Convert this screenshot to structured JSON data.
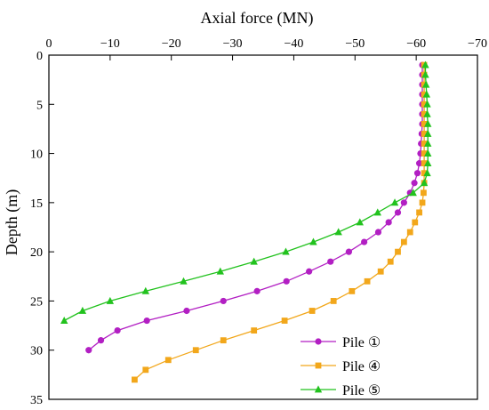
{
  "chart_data": {
    "type": "line",
    "title": "",
    "xlabel": "Axial force (MN)",
    "ylabel": "Depth (m)",
    "xlim": [
      0,
      -70
    ],
    "ylim": [
      0,
      35
    ],
    "x_axis_position": "top",
    "y_inverted": true,
    "grid": false,
    "legend_position": "bottom-right",
    "xticks": [
      0,
      -10,
      -20,
      -30,
      -40,
      -50,
      -60,
      -70
    ],
    "yticks": [
      0,
      5,
      10,
      15,
      20,
      25,
      30,
      35
    ],
    "series": [
      {
        "name": "Pile ①",
        "color": "#b21fc3",
        "marker": "circle",
        "points": [
          [
            -61.0,
            1
          ],
          [
            -61.0,
            2
          ],
          [
            -61.0,
            3
          ],
          [
            -61.0,
            4
          ],
          [
            -61.0,
            5
          ],
          [
            -61.0,
            6
          ],
          [
            -61.0,
            7
          ],
          [
            -60.9,
            8
          ],
          [
            -60.8,
            9
          ],
          [
            -60.7,
            10
          ],
          [
            -60.5,
            11
          ],
          [
            -60.2,
            12
          ],
          [
            -59.7,
            13
          ],
          [
            -59.0,
            14
          ],
          [
            -58.0,
            15
          ],
          [
            -57.0,
            16
          ],
          [
            -55.5,
            17
          ],
          [
            -53.8,
            18
          ],
          [
            -51.5,
            19
          ],
          [
            -49.0,
            20
          ],
          [
            -46.0,
            21
          ],
          [
            -42.5,
            22
          ],
          [
            -38.8,
            23
          ],
          [
            -34.0,
            24
          ],
          [
            -28.5,
            25
          ],
          [
            -22.5,
            26
          ],
          [
            -16.0,
            27
          ],
          [
            -11.2,
            28
          ],
          [
            -8.5,
            29
          ],
          [
            -6.5,
            30
          ]
        ]
      },
      {
        "name": "Pile ④",
        "color": "#f2a71b",
        "marker": "square",
        "points": [
          [
            -61.3,
            1
          ],
          [
            -61.3,
            2
          ],
          [
            -61.3,
            3
          ],
          [
            -61.3,
            4
          ],
          [
            -61.3,
            5
          ],
          [
            -61.3,
            6
          ],
          [
            -61.3,
            7
          ],
          [
            -61.3,
            8
          ],
          [
            -61.3,
            9
          ],
          [
            -61.3,
            10
          ],
          [
            -61.3,
            11
          ],
          [
            -61.3,
            12
          ],
          [
            -61.3,
            13
          ],
          [
            -61.2,
            14
          ],
          [
            -61.0,
            15
          ],
          [
            -60.5,
            16
          ],
          [
            -59.8,
            17
          ],
          [
            -59.0,
            18
          ],
          [
            -58.0,
            19
          ],
          [
            -57.0,
            20
          ],
          [
            -55.8,
            21
          ],
          [
            -54.2,
            22
          ],
          [
            -52.0,
            23
          ],
          [
            -49.5,
            24
          ],
          [
            -46.5,
            25
          ],
          [
            -43.0,
            26
          ],
          [
            -38.5,
            27
          ],
          [
            -33.5,
            28
          ],
          [
            -28.5,
            29
          ],
          [
            -24.0,
            30
          ],
          [
            -19.5,
            31
          ],
          [
            -15.8,
            32
          ],
          [
            -14.0,
            33
          ]
        ]
      },
      {
        "name": "Pile ⑤",
        "color": "#22c21e",
        "marker": "triangle",
        "points": [
          [
            -61.5,
            1
          ],
          [
            -61.5,
            2
          ],
          [
            -61.6,
            3
          ],
          [
            -61.7,
            4
          ],
          [
            -61.8,
            5
          ],
          [
            -61.8,
            6
          ],
          [
            -61.9,
            7
          ],
          [
            -61.9,
            8
          ],
          [
            -61.9,
            9
          ],
          [
            -61.9,
            10
          ],
          [
            -61.9,
            11
          ],
          [
            -61.8,
            12
          ],
          [
            -61.3,
            13
          ],
          [
            -59.5,
            14
          ],
          [
            -56.5,
            15
          ],
          [
            -53.7,
            16
          ],
          [
            -50.8,
            17
          ],
          [
            -47.3,
            18
          ],
          [
            -43.2,
            19
          ],
          [
            -38.7,
            20
          ],
          [
            -33.5,
            21
          ],
          [
            -28.0,
            22
          ],
          [
            -22.0,
            23
          ],
          [
            -15.8,
            24
          ],
          [
            -10.0,
            25
          ],
          [
            -5.5,
            26
          ],
          [
            -2.5,
            27
          ]
        ]
      }
    ]
  }
}
